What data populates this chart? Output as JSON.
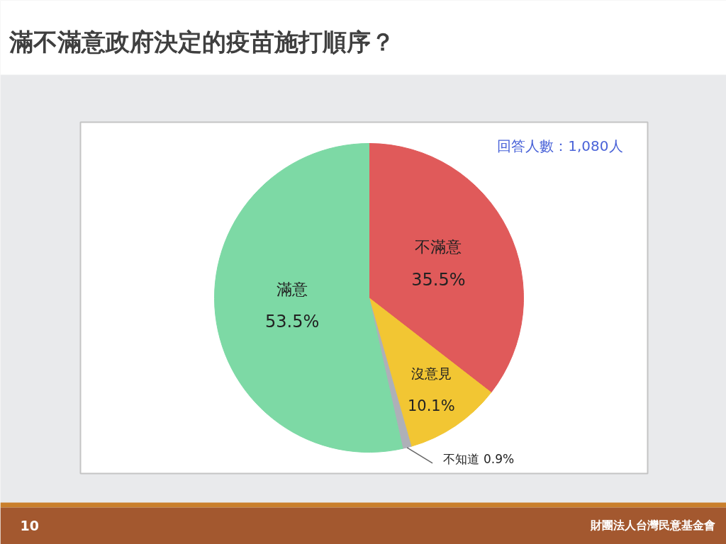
{
  "chart_data": {
    "type": "pie",
    "title": "滿不滿意政府決定的疫苗施打順序？",
    "categories": [
      "不滿意",
      "沒意見",
      "不知道",
      "滿意"
    ],
    "values": [
      35.5,
      10.1,
      0.9,
      53.5
    ],
    "colors": [
      "#e05a5a",
      "#f2c633",
      "#aeb0b8",
      "#7dd9a5"
    ],
    "value_labels": [
      "35.5%",
      "10.1%",
      "0.9%",
      "53.5%"
    ],
    "annotations": [
      "回答人數：1,080人",
      "10",
      "財團法人台灣民意基金會"
    ]
  }
}
